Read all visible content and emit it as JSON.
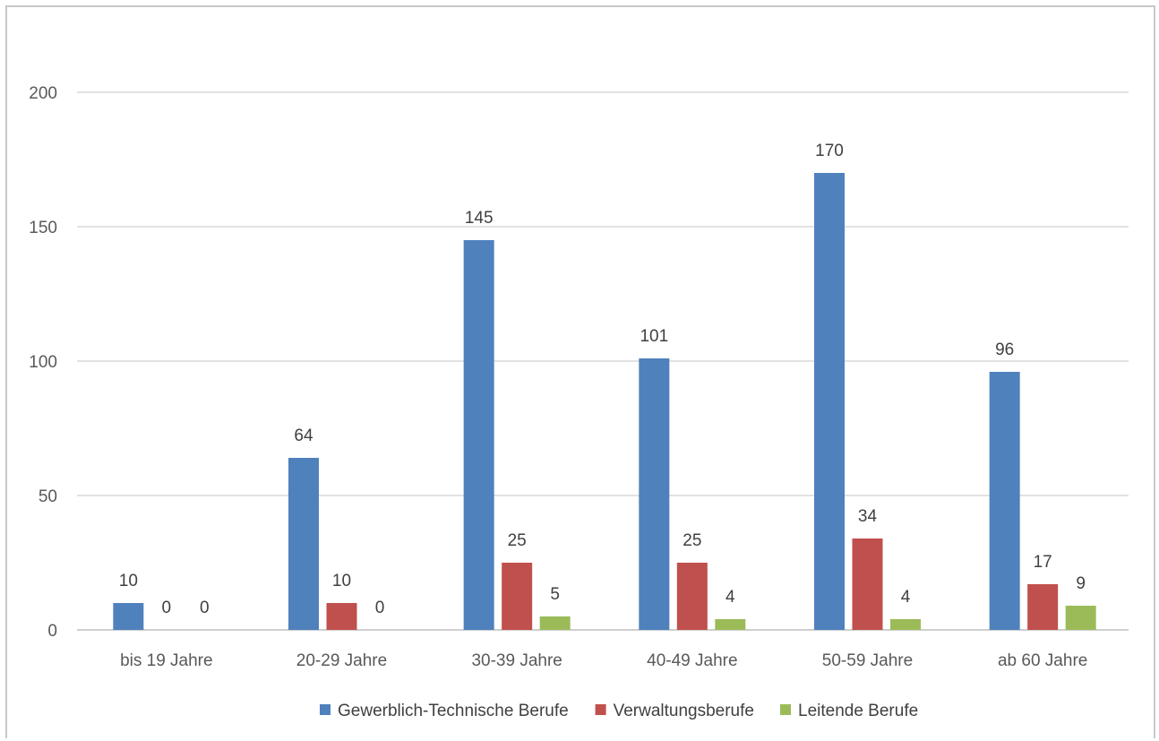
{
  "chart_data": {
    "type": "bar",
    "categories": [
      "bis 19 Jahre",
      "20-29 Jahre",
      "30-39 Jahre",
      "40-49 Jahre",
      "50-59 Jahre",
      "ab 60 Jahre"
    ],
    "series": [
      {
        "name": "Gewerblich-Technische Berufe",
        "color": "#4F81BD",
        "values": [
          10,
          64,
          145,
          101,
          170,
          96
        ]
      },
      {
        "name": "Verwaltungsberufe",
        "color": "#C0504D",
        "values": [
          0,
          10,
          25,
          25,
          34,
          17
        ]
      },
      {
        "name": "Leitende Berufe",
        "color": "#9BBB59",
        "values": [
          0,
          0,
          5,
          4,
          4,
          9
        ]
      }
    ],
    "y_ticks": [
      "0",
      "50",
      "100",
      "150",
      "200"
    ],
    "ylim": [
      0,
      200
    ],
    "grid": true,
    "legend_position": "bottom",
    "data_labels": true
  }
}
